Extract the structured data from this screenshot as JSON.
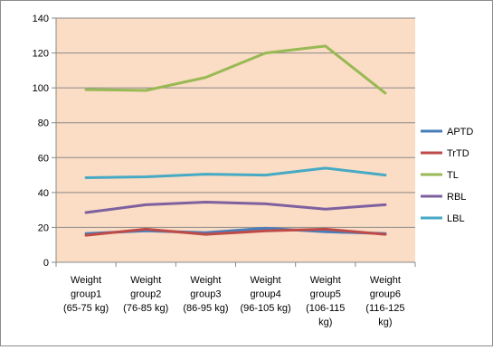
{
  "chart_data": {
    "type": "line",
    "title": "",
    "xlabel": "",
    "ylabel": "",
    "ylim": [
      0,
      140
    ],
    "ytick_step": 20,
    "yticks": [
      "0",
      "20",
      "40",
      "60",
      "80",
      "100",
      "120",
      "140"
    ],
    "grid": true,
    "legend_position": "right",
    "plot_background": "#fbdcc4",
    "categories": [
      [
        "Weight",
        "group1",
        "(65-75 kg)"
      ],
      [
        "Weight",
        "group2",
        "(76-85 kg)"
      ],
      [
        "Weight",
        "group3",
        "(86-95 kg)"
      ],
      [
        "Weight",
        "group4",
        "(96-105 kg)"
      ],
      [
        "Weight",
        "group5",
        "(106-115",
        "kg)"
      ],
      [
        "Weight",
        "group6",
        "(116-125",
        "kg)"
      ]
    ],
    "series": [
      {
        "name": "APTD",
        "color": "#4a7ebb",
        "values": [
          16.5,
          18,
          17,
          19.5,
          17.5,
          16.5
        ]
      },
      {
        "name": "TrTD",
        "color": "#be4b48",
        "values": [
          15.5,
          19,
          16,
          18,
          19,
          16
        ]
      },
      {
        "name": "TL",
        "color": "#98b954",
        "values": [
          99,
          98.5,
          106,
          120,
          124,
          97
        ]
      },
      {
        "name": "RBL",
        "color": "#7d60a0",
        "values": [
          28.5,
          33,
          34.5,
          33.5,
          30.5,
          33
        ]
      },
      {
        "name": "LBL",
        "color": "#46aac5",
        "values": [
          48.5,
          49,
          50.5,
          50,
          54,
          50
        ]
      }
    ]
  }
}
